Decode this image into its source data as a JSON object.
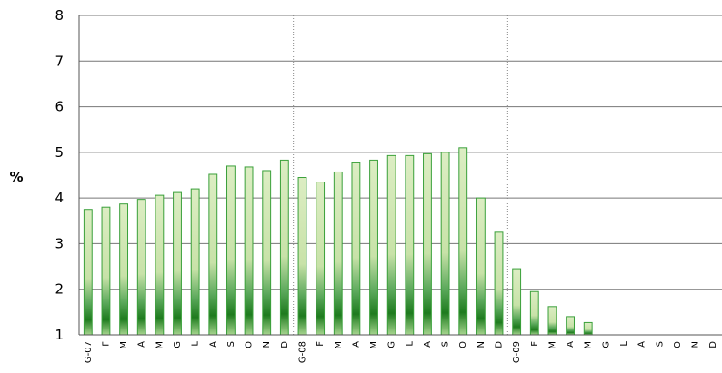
{
  "chart_data": {
    "type": "bar",
    "ylabel": "%",
    "ylim": [
      1,
      8
    ],
    "yticks": [
      1,
      2,
      3,
      4,
      5,
      6,
      7,
      8
    ],
    "grid": true,
    "categories": [
      "G-07",
      "F",
      "M",
      "A",
      "M",
      "G",
      "L",
      "A",
      "S",
      "O",
      "N",
      "D",
      "G-08",
      "F",
      "M",
      "A",
      "M",
      "G",
      "L",
      "A",
      "S",
      "O",
      "N",
      "D",
      "G-09",
      "F",
      "M",
      "A",
      "M",
      "G",
      "L",
      "A",
      "S",
      "O",
      "N",
      "D"
    ],
    "values": [
      3.75,
      3.8,
      3.87,
      3.97,
      4.06,
      4.12,
      4.2,
      4.52,
      4.7,
      4.68,
      4.6,
      4.83,
      4.45,
      4.35,
      4.57,
      4.77,
      4.83,
      4.93,
      4.93,
      4.97,
      5.0,
      5.1,
      4.0,
      3.25,
      2.45,
      1.95,
      1.62,
      1.4,
      1.27,
      null,
      null,
      null,
      null,
      null,
      null,
      null
    ],
    "separators_after": [
      11,
      23
    ],
    "colors": {
      "bar_fill": "#d4e8b4",
      "bar_dark": "#1e7b1e",
      "bar_stroke": "#3aa03a",
      "grid": "#777777",
      "separator": "#888888"
    }
  }
}
